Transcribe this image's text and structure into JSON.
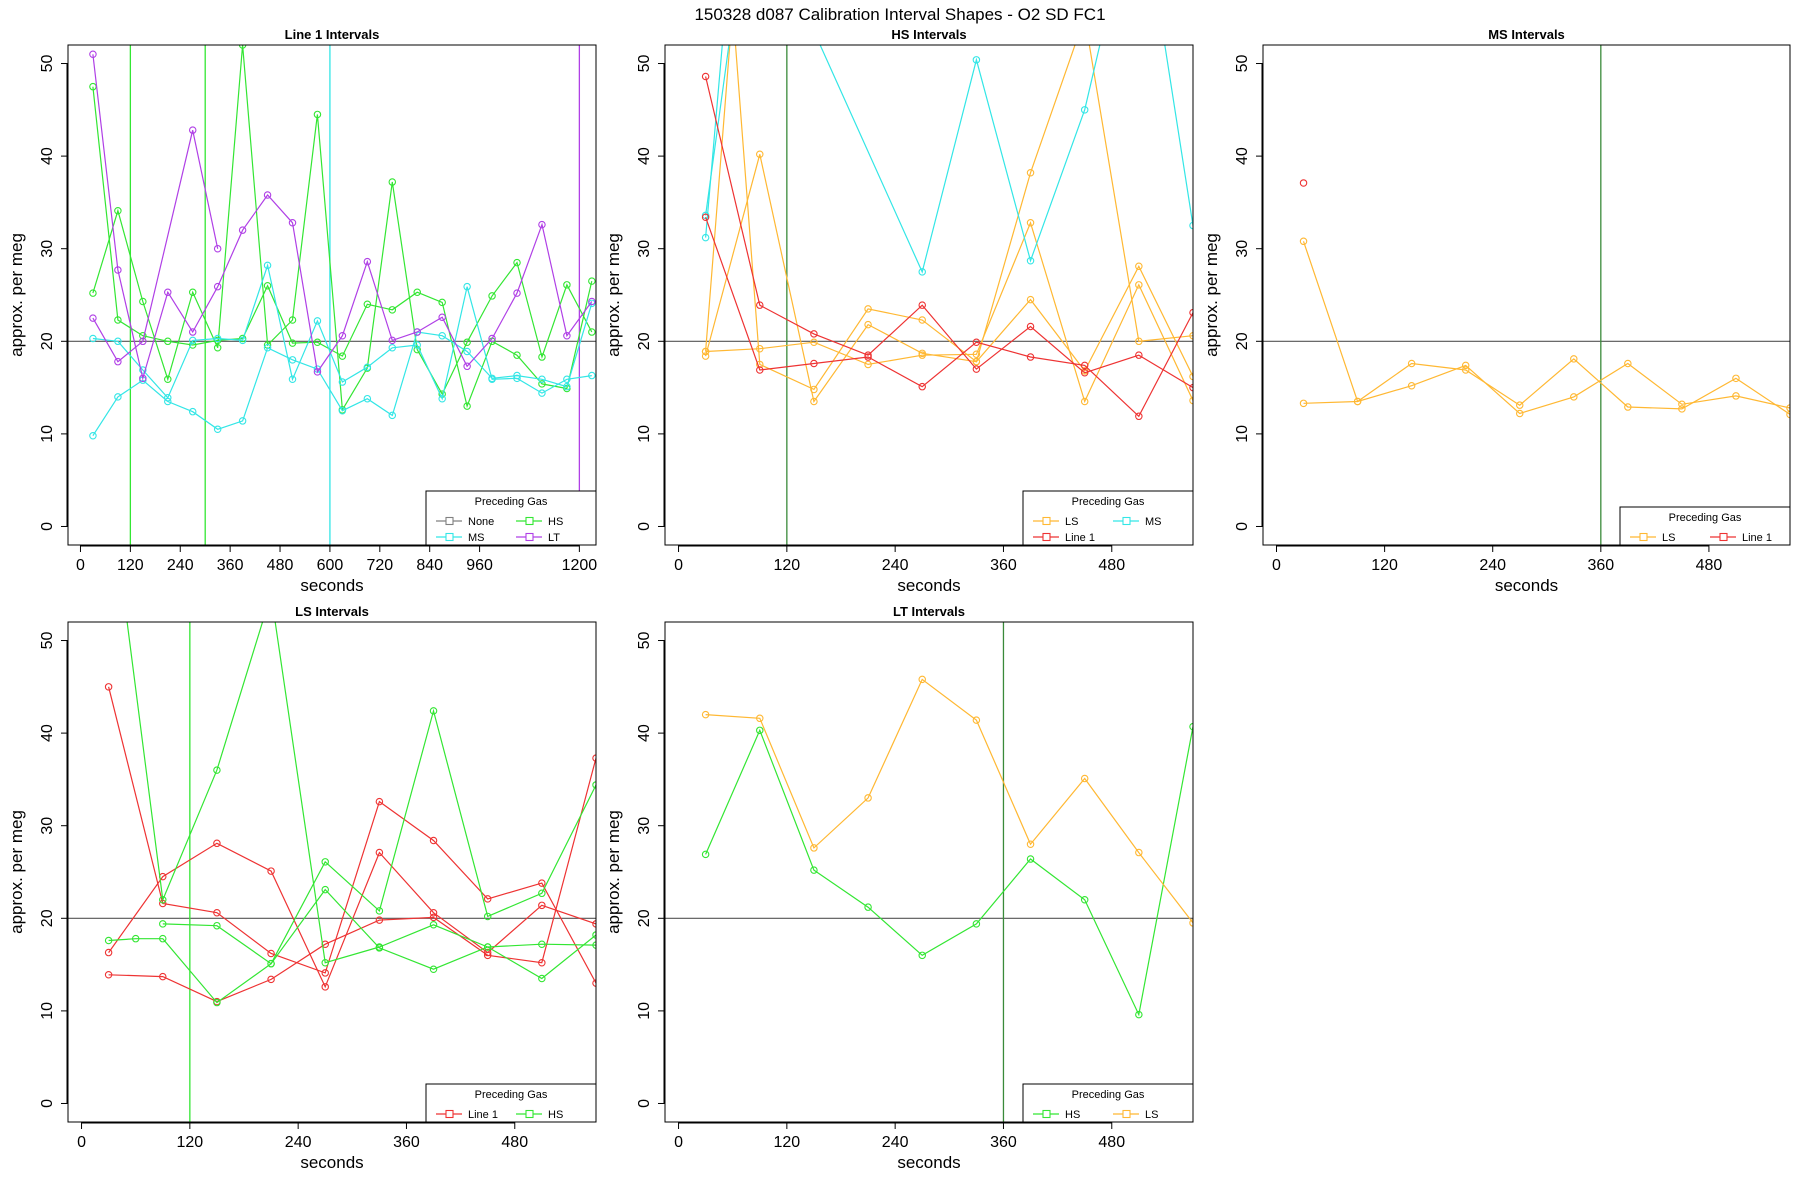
{
  "page_title": "150328   d087   Calibration Interval Shapes - O2 SD FC1",
  "colors": {
    "None": "#808080",
    "HS": "#33e633",
    "MS": "#33e6e6",
    "LT": "#b040e6",
    "LS": "#ffb833",
    "Line 1": "#ee3333",
    "reference_line": "#555555",
    "axis": "#000000"
  },
  "legend_title": "Preceding Gas",
  "chart_data": [
    {
      "type": "line",
      "title": "Line 1 Intervals",
      "xlabel": "seconds",
      "ylabel": "approx. per meg",
      "xlim": [
        -30,
        1240
      ],
      "ylim": [
        -2,
        52
      ],
      "xticks": [
        0,
        120,
        240,
        360,
        480,
        600,
        720,
        840,
        960,
        1200
      ],
      "yticks": [
        0,
        10,
        20,
        30,
        40,
        50
      ],
      "reference_y": 20,
      "grid": false,
      "legend_position": "bottom-right",
      "legend_entries": [
        "None",
        "HS",
        "MS",
        "LT"
      ],
      "legend_columns": 2,
      "vlines": [
        {
          "x": 120,
          "gas": "HS"
        },
        {
          "x": 300,
          "gas": "HS"
        },
        {
          "x": 600,
          "gas": "MS"
        },
        {
          "x": 1200,
          "gas": "LT"
        }
      ],
      "series": [
        {
          "name": "HS",
          "x": [
            30,
            90,
            150,
            210,
            270,
            330,
            390,
            450,
            510,
            570,
            630,
            690,
            750,
            810,
            870,
            930,
            990,
            1050,
            1110,
            1170,
            1230
          ],
          "y": [
            47.5,
            22.3,
            20.6,
            20.0,
            19.6,
            20.1,
            20.3,
            26.0,
            19.8,
            19.9,
            18.4,
            24.0,
            23.4,
            25.3,
            24.2,
            13.0,
            20.0,
            18.5,
            15.4,
            14.9,
            26.5
          ]
        },
        {
          "name": "HS",
          "x": [
            30,
            90,
            150,
            210,
            270,
            330,
            390,
            450,
            510,
            570,
            630,
            690,
            750,
            810,
            870,
            930,
            990,
            1050,
            1110,
            1170,
            1230
          ],
          "y": [
            25.2,
            34.1,
            24.3,
            15.9,
            25.3,
            19.3,
            52.0,
            19.6,
            22.3,
            44.5,
            12.6,
            17.1,
            37.2,
            19.1,
            14.3,
            19.9,
            24.9,
            28.5,
            18.3,
            26.1,
            21.0
          ]
        },
        {
          "name": "MS",
          "x": [
            30,
            90,
            150,
            210,
            270,
            330,
            390,
            450,
            510,
            570,
            630,
            690,
            750,
            810,
            870,
            930,
            990,
            1050,
            1110,
            1170,
            1230
          ],
          "y": [
            20.3,
            20.0,
            16.9,
            13.9,
            20.1,
            20.3,
            20.1,
            28.2,
            15.9,
            22.2,
            15.6,
            17.2,
            19.3,
            19.6,
            13.8,
            25.9,
            15.9,
            16.0,
            14.4,
            15.9,
            16.3
          ]
        },
        {
          "name": "MS",
          "x": [
            30,
            90,
            150,
            210,
            270,
            330,
            390,
            450,
            510,
            570,
            630,
            690,
            750,
            810,
            870,
            930,
            990,
            1050,
            1110,
            1170,
            1230
          ],
          "y": [
            9.8,
            14.0,
            15.8,
            13.5,
            12.4,
            10.5,
            11.4,
            19.3,
            18.0,
            17.0,
            12.5,
            13.8,
            12.0,
            21.0,
            20.6,
            18.9,
            16.0,
            16.3,
            15.9,
            15.1,
            24.1
          ]
        },
        {
          "name": "LT",
          "x": [
            30,
            90,
            150,
            210,
            270,
            330,
            390,
            450,
            510,
            570,
            630,
            690,
            750,
            810,
            870,
            930,
            990,
            1050,
            1110,
            1170,
            1230
          ],
          "y": [
            51.0,
            27.7,
            16.0,
            25.3,
            21.0,
            25.9,
            32.0,
            35.8,
            32.8,
            16.7,
            20.6,
            28.6,
            20.1,
            21.0,
            22.6,
            17.3,
            20.3,
            25.2,
            32.6,
            20.6,
            24.3
          ]
        },
        {
          "name": "LT",
          "x": [
            30,
            90,
            150,
            270,
            330
          ],
          "y": [
            22.5,
            17.8,
            20.0,
            42.8,
            30.0
          ]
        }
      ]
    },
    {
      "type": "line",
      "title": "HS Intervals",
      "xlabel": "seconds",
      "ylabel": "approx. per meg",
      "xlim": [
        -15,
        570
      ],
      "ylim": [
        -2,
        52
      ],
      "xticks": [
        0,
        120,
        240,
        360,
        480
      ],
      "yticks": [
        0,
        10,
        20,
        30,
        40,
        50
      ],
      "reference_y": 20,
      "grid": false,
      "legend_position": "bottom-right",
      "legend_entries": [
        "LS",
        "MS",
        "Line 1"
      ],
      "legend_columns": 2,
      "vlines": [
        {
          "x": 120,
          "gas": "HS"
        }
      ],
      "series": [
        {
          "name": "LS",
          "x": [
            30,
            90,
            150,
            210,
            270,
            330,
            390,
            450,
            510,
            570
          ],
          "y": [
            18.4,
            40.2,
            13.5,
            21.8,
            18.7,
            17.8,
            38.2,
            55.0,
            20.0,
            20.6
          ]
        },
        {
          "name": "LS",
          "x": [
            30,
            90,
            150,
            210,
            270,
            330,
            390,
            450,
            510,
            570
          ],
          "y": [
            18.9,
            19.2,
            19.9,
            17.5,
            18.5,
            18.6,
            32.8,
            13.5,
            26.1,
            13.6
          ]
        },
        {
          "name": "LS",
          "x": [
            30,
            60,
            90,
            150,
            210,
            270,
            330,
            390,
            450,
            510,
            570
          ],
          "y": [
            18.9,
            56.0,
            17.5,
            14.8,
            23.5,
            22.3,
            17.8,
            24.5,
            16.8,
            28.1,
            16.2
          ]
        },
        {
          "name": "MS",
          "x": [
            30,
            60,
            120,
            270,
            330,
            390,
            450,
            510,
            570
          ],
          "y": [
            31.2,
            65.0,
            60.0,
            27.5,
            50.4,
            28.7,
            45.0,
            70.0,
            32.5
          ]
        },
        {
          "name": "MS",
          "x": [
            30,
            60
          ],
          "y": [
            33.6,
            55.0
          ]
        },
        {
          "name": "Line 1",
          "x": [
            30,
            90,
            150,
            210,
            270,
            330,
            390,
            450,
            510,
            570
          ],
          "y": [
            48.6,
            23.9,
            20.8,
            18.5,
            23.9,
            17.0,
            21.6,
            16.6,
            18.5,
            15.0
          ]
        },
        {
          "name": "Line 1",
          "x": [
            30,
            90,
            150,
            210,
            270,
            330,
            390,
            450,
            510,
            570
          ],
          "y": [
            33.4,
            16.9,
            17.6,
            18.3,
            15.1,
            19.9,
            18.3,
            17.4,
            11.9,
            23.1
          ]
        }
      ]
    },
    {
      "type": "line",
      "title": "MS Intervals",
      "xlabel": "seconds",
      "ylabel": "approx. per meg",
      "xlim": [
        -15,
        570
      ],
      "ylim": [
        -2,
        52
      ],
      "xticks": [
        0,
        120,
        240,
        360,
        480
      ],
      "yticks": [
        0,
        10,
        20,
        30,
        40,
        50
      ],
      "reference_y": 20,
      "grid": false,
      "legend_position": "bottom-right",
      "legend_entries": [
        "LS",
        "Line 1"
      ],
      "legend_columns": 2,
      "vlines": [
        {
          "x": 360,
          "gas": "HS"
        }
      ],
      "series": [
        {
          "name": "LS",
          "x": [
            30,
            90,
            150,
            210,
            270,
            330,
            390,
            450,
            510,
            570
          ],
          "y": [
            30.8,
            13.5,
            15.2,
            17.4,
            12.2,
            14.0,
            17.6,
            13.2,
            14.1,
            12.8
          ]
        },
        {
          "name": "LS",
          "x": [
            30,
            90,
            150,
            210,
            270,
            330,
            390,
            450,
            510,
            570
          ],
          "y": [
            13.3,
            13.5,
            17.6,
            16.9,
            13.1,
            18.1,
            12.9,
            12.7,
            16.0,
            12.1
          ]
        },
        {
          "name": "Line 1",
          "x": [
            30
          ],
          "y": [
            37.1
          ]
        }
      ]
    },
    {
      "type": "line",
      "title": "LS Intervals",
      "xlabel": "seconds",
      "ylabel": "approx. per meg",
      "xlim": [
        -15,
        570
      ],
      "ylim": [
        -2,
        52
      ],
      "xticks": [
        0,
        120,
        240,
        360,
        480
      ],
      "yticks": [
        0,
        10,
        20,
        30,
        40,
        50
      ],
      "reference_y": 20,
      "grid": false,
      "legend_position": "bottom-right",
      "legend_entries": [
        "Line 1",
        "HS"
      ],
      "legend_columns": 2,
      "vlines": [
        {
          "x": 120,
          "gas": "HS"
        }
      ],
      "series": [
        {
          "name": "Line 1",
          "x": [
            30,
            90,
            150,
            210,
            270,
            330,
            390,
            450,
            510,
            570
          ],
          "y": [
            45.0,
            21.6,
            20.6,
            16.2,
            14.1,
            32.6,
            28.4,
            22.1,
            23.8,
            13.0
          ]
        },
        {
          "name": "Line 1",
          "x": [
            30,
            90,
            150,
            210,
            270,
            330,
            390,
            450,
            510,
            570
          ],
          "y": [
            16.3,
            24.5,
            28.1,
            25.1,
            12.6,
            27.1,
            20.6,
            16.3,
            21.4,
            19.4
          ]
        },
        {
          "name": "Line 1",
          "x": [
            30,
            90,
            150,
            210,
            270,
            330,
            390,
            450,
            510,
            570
          ],
          "y": [
            13.9,
            13.7,
            11.0,
            13.4,
            17.2,
            19.8,
            20.1,
            16.0,
            15.2,
            37.3
          ]
        },
        {
          "name": "HS",
          "x": [
            30,
            60,
            90,
            150,
            210,
            270,
            330,
            390,
            450,
            510,
            570
          ],
          "y": [
            17.6,
            17.8,
            17.8,
            10.9,
            15.1,
            26.1,
            20.8,
            42.4,
            20.2,
            22.7,
            34.4
          ]
        },
        {
          "name": "HS",
          "x": [
            40,
            90,
            150,
            210,
            270,
            330,
            390,
            450,
            510,
            570
          ],
          "y": [
            60.0,
            22.0,
            36.0,
            55.0,
            15.2,
            16.9,
            19.3,
            16.9,
            13.5,
            18.2
          ]
        },
        {
          "name": "HS",
          "x": [
            90,
            150,
            210,
            270,
            330,
            390,
            450,
            510,
            570
          ],
          "y": [
            19.4,
            19.2,
            15.1,
            23.1,
            16.8,
            14.5,
            16.9,
            17.2,
            17.1
          ]
        }
      ]
    },
    {
      "type": "line",
      "title": "LT Intervals",
      "xlabel": "seconds",
      "ylabel": "approx. per meg",
      "xlim": [
        -15,
        570
      ],
      "ylim": [
        -2,
        52
      ],
      "xticks": [
        0,
        120,
        240,
        360,
        480
      ],
      "yticks": [
        0,
        10,
        20,
        30,
        40,
        50
      ],
      "reference_y": 20,
      "grid": false,
      "legend_position": "bottom-right",
      "legend_entries": [
        "HS",
        "LS"
      ],
      "legend_columns": 2,
      "vlines": [
        {
          "x": 360,
          "gas": "HS"
        }
      ],
      "series": [
        {
          "name": "HS",
          "x": [
            30,
            90,
            150,
            210,
            270,
            330,
            390,
            450,
            510,
            570
          ],
          "y": [
            26.9,
            40.3,
            25.2,
            21.2,
            16.0,
            19.4,
            26.4,
            22.0,
            9.6,
            40.7
          ]
        },
        {
          "name": "LS",
          "x": [
            30,
            90,
            150,
            210,
            270,
            330,
            390,
            450,
            510,
            570
          ],
          "y": [
            42.0,
            41.6,
            27.6,
            33.0,
            45.8,
            41.4,
            28.0,
            35.1,
            27.1,
            19.5
          ]
        }
      ]
    }
  ]
}
